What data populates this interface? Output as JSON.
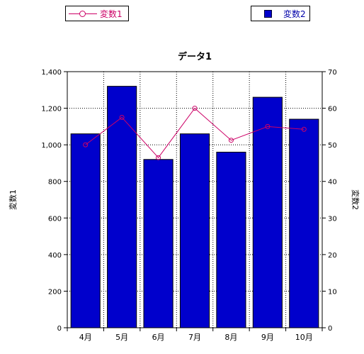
{
  "legend": {
    "series1_label": "変数1",
    "series2_label": "変数2"
  },
  "chart_data": {
    "type": "bar",
    "title": "データ1",
    "categories": [
      "4月",
      "5月",
      "6月",
      "7月",
      "8月",
      "9月",
      "10月"
    ],
    "series": [
      {
        "name": "変数1",
        "type": "line",
        "axis": "left",
        "color": "#cc0066",
        "values": [
          1000,
          1150,
          930,
          1200,
          1025,
          1100,
          1085
        ]
      },
      {
        "name": "変数2",
        "type": "bar",
        "axis": "right",
        "color": "#0000cc",
        "values": [
          53,
          66,
          46,
          53,
          48,
          63,
          57
        ]
      }
    ],
    "ylabel": "変数1",
    "y2label": "変数2",
    "ylim": [
      0,
      1400
    ],
    "y2lim": [
      0,
      70
    ],
    "yticks": [
      "0",
      "200",
      "400",
      "600",
      "800",
      "1,000",
      "1,200",
      "1,400"
    ],
    "y2ticks": [
      "0",
      "10",
      "20",
      "30",
      "40",
      "50",
      "60",
      "70"
    ],
    "grid": true,
    "legend_position": "top"
  }
}
